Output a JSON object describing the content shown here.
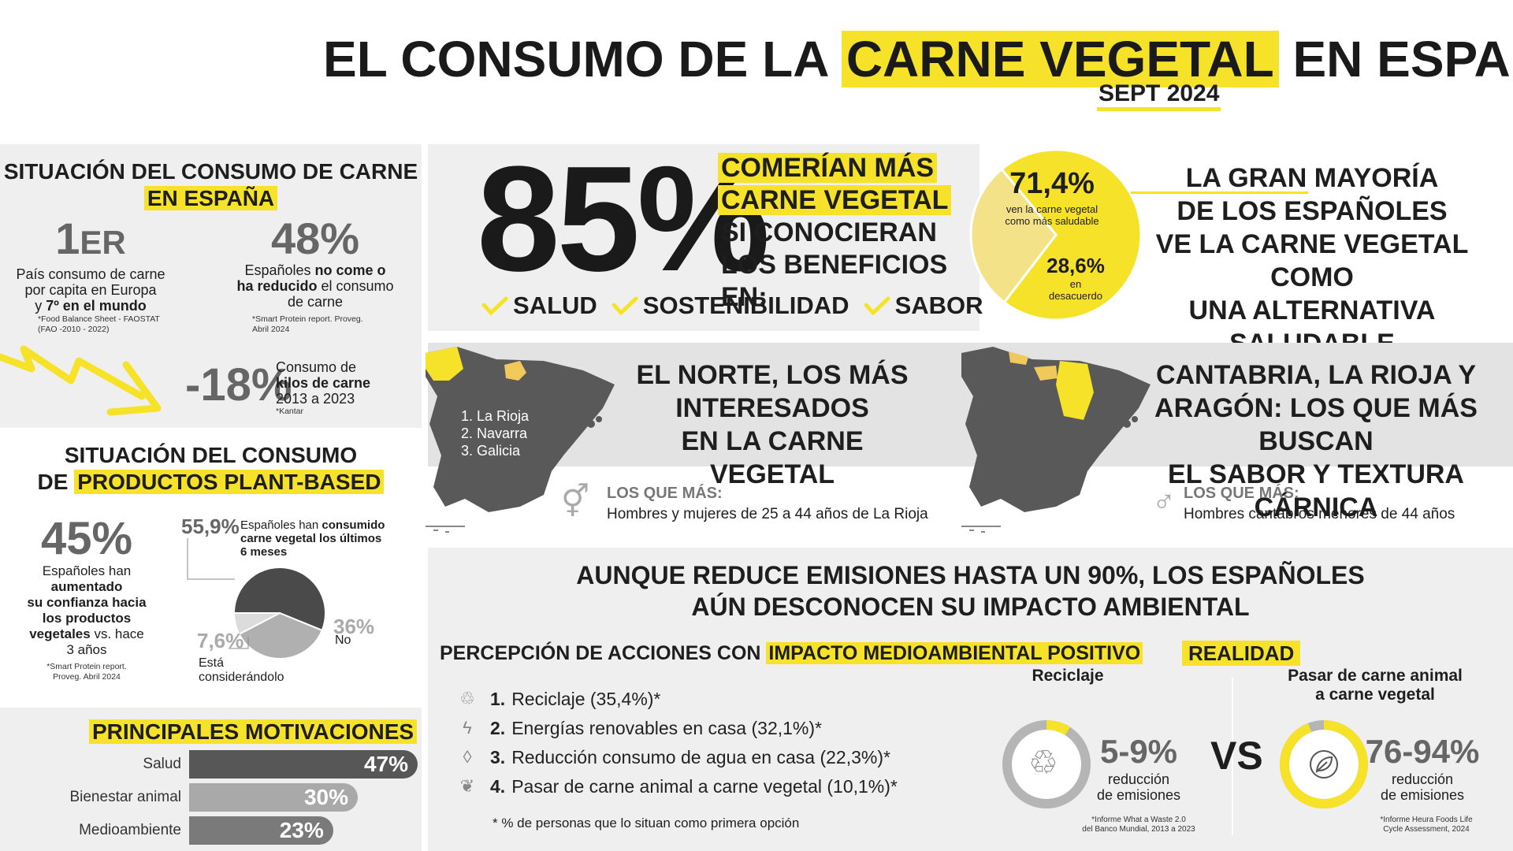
{
  "header": {
    "title_pre": "EL CONSUMO DE LA",
    "title_hl": "CARNE VEGETAL",
    "title_post": "EN ESPAÑA",
    "date": "SEPT 2024"
  },
  "situacion_carne": {
    "title_line1": "SITUACIÓN DEL CONSUMO DE CARNE",
    "title_line2": "EN ESPAÑA",
    "stat1": {
      "big": "1",
      "sup": "ER",
      "line1": "País consumo de carne",
      "line2": "por capita en Europa",
      "line3_pre": "y ",
      "line3_bold": "7º en el mundo",
      "source1": "*Food Balance Sheet - FAOSTAT",
      "source2": "(FAO -2010 - 2022)"
    },
    "stat2": {
      "big": "48%",
      "line1_pre": "Españoles ",
      "line1_bold": "no come o",
      "line2_bold": "ha reducido",
      "line2_post": " el consumo",
      "line3": "de carne",
      "source1": "*Smart Protein report. Proveg.",
      "source2": "Abril 2024"
    },
    "stat3": {
      "big": "-18%",
      "line1": "Consumo de",
      "line2_bold": "kilos de carne",
      "line3": "2013 a 2023",
      "source": "*Kantar"
    }
  },
  "plant_based": {
    "title_line1": "SITUACIÓN DEL CONSUMO",
    "title_line2_pre": "DE ",
    "title_line2_hl": "PRODUCTOS PLANT-BASED",
    "stat_big": "45%",
    "stat_lines": [
      "Españoles han",
      "aumentado",
      "su confianza hacia",
      "los productos",
      "vegetales",
      "vs. hace",
      "3 años"
    ],
    "source1": "*Smart Protein report.",
    "source2": "Proveg. Abril 2024",
    "pie_yes_value": "55,9%",
    "pie_yes_label_pre": "Españoles han ",
    "pie_yes_label_bold1": "consumido",
    "pie_yes_label_bold2": "carne vegetal los últimos",
    "pie_yes_label_bold3": "6 meses",
    "pie_no_value": "36%",
    "pie_no_label": "No",
    "pie_cons_value": "7,6%",
    "pie_cons_label1": "Está",
    "pie_cons_label2": "considerándolo"
  },
  "chart_data": [
    {
      "type": "pie",
      "categories": [
        "Sí",
        "No",
        "Está considerándolo"
      ],
      "values": [
        55.9,
        36,
        7.6
      ]
    },
    {
      "type": "bar",
      "title": "PRINCIPALES MOTIVACIONES",
      "categories": [
        "Salud",
        "Bienestar animal",
        "Medioambiente"
      ],
      "values": [
        47,
        30,
        23
      ]
    },
    {
      "type": "pie",
      "categories": [
        "ven la carne vegetal como más saludable",
        "en desacuerdo"
      ],
      "values": [
        71.4,
        28.6
      ]
    }
  ],
  "motivaciones": {
    "title": "PRINCIPALES MOTIVACIONES",
    "items": [
      {
        "label": "Salud",
        "value": "47%",
        "color": "#575757"
      },
      {
        "label": "Bienestar animal",
        "value": "30%",
        "color": "#a9a9a9"
      },
      {
        "label": "Medioambiente",
        "value": "23%",
        "color": "#7a7a7a"
      }
    ]
  },
  "beneficios": {
    "big": "85%",
    "hl1": "COMERÍAN MÁS",
    "hl2": "CARNE VEGETAL",
    "line3": "SI CONOCIERAN",
    "line4": "LOS BENEFICIOS EN:",
    "checks": [
      "SALUD",
      "SOSTENIBILIDAD",
      "SABOR"
    ]
  },
  "saludable": {
    "pie_big": "71,4%",
    "pie_big_label1": "ven la carne vegetal",
    "pie_big_label2": "como más saludable",
    "pie_small": "28,6%",
    "pie_small_label1": "en",
    "pie_small_label2": "desacuerdo",
    "title_lines": [
      "LA GRAN MAYORÍA",
      "DE LOS ESPAÑOLES",
      "VE LA CARNE VEGETAL COMO",
      "UNA ALTERNATIVA SALUDABLE"
    ]
  },
  "norte": {
    "title_lines": [
      "EL NORTE, LOS MÁS",
      "INTERESADOS",
      "EN LA CARNE VEGETAL"
    ],
    "ranking": [
      "1. La Rioja",
      "2. Navarra",
      "3. Galicia"
    ],
    "los_que_mas": "LOS QUE MÁS:",
    "desc": "Hombres y mujeres de 25 a 44 años de La Rioja"
  },
  "sabor": {
    "title_lines": [
      "CANTABRIA, LA RIOJA Y",
      "ARAGÓN: LOS QUE MÁS BUSCAN",
      "EL SABOR Y TEXTURA CÁRNICA"
    ],
    "los_que_mas": "LOS QUE MÁS:",
    "desc": "Hombres cantábros menores de 44 años"
  },
  "emisiones": {
    "title_line1": "AUNQUE REDUCE EMISIONES HASTA UN 90%, LOS ESPAÑOLES",
    "title_line2": "AÚN DESCONOCEN SU IMPACTO AMBIENTAL",
    "percepcion_pre": "PERCEPCIÓN DE ACCIONES CON ",
    "percepcion_hl": "IMPACTO MEDIOAMBIENTAL POSITIVO",
    "actions": [
      {
        "num": "1.",
        "text": "Reciclaje  (35,4%)*",
        "icon": "recycle-icon"
      },
      {
        "num": "2.",
        "text": "Energías renovables en casa (32,1%)*",
        "icon": "lightning-icon"
      },
      {
        "num": "3.",
        "text": "Reducción consumo de agua en casa (22,3%)*",
        "icon": "water-drop-icon"
      },
      {
        "num": "4.",
        "text": "Pasar de carne animal a carne vegetal (10,1%)*",
        "icon": "leaf-icon"
      }
    ],
    "footnote": "* % de personas que lo situan como primera opción",
    "realidad": "REALIDAD",
    "reciclaje_title": "Reciclaje",
    "reciclaje_value": "5-9%",
    "reciclaje_label1": "reducción",
    "reciclaje_label2": "de emisiones",
    "reciclaje_source1": "*Informe What a Waste 2.0",
    "reciclaje_source2": "del Banco Mundial, 2013 a 2023",
    "vs": "VS",
    "vegetal_title1": "Pasar de carne animal",
    "vegetal_title2": "a carne vegetal",
    "vegetal_value": "76-94%",
    "vegetal_label1": "reducción",
    "vegetal_label2": "de emisiones",
    "vegetal_source1": "*Informe Heura Foods Life",
    "vegetal_source2": "Cycle Assessment, 2024",
    "ring_reciclaje_fraction": 0.09,
    "ring_vegetal_fraction": 0.94
  },
  "colors": {
    "accent": "#f7e22a",
    "dark": "#575757",
    "grey_panel": "#f0efef",
    "band": "#e3e3e3"
  }
}
